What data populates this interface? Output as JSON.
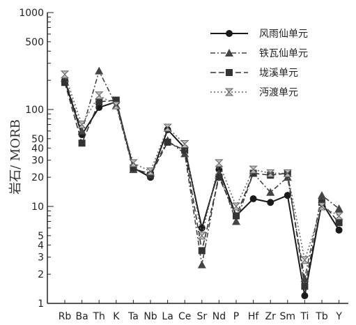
{
  "chart_data": {
    "type": "line",
    "title": "",
    "xlabel": "",
    "ylabel": "岩石/ MORB",
    "yscale": "log",
    "ylim": [
      1,
      1000
    ],
    "yticks": [
      1,
      2,
      3,
      4,
      5,
      10,
      20,
      30,
      40,
      50,
      100,
      500,
      1000
    ],
    "grid": false,
    "legend_position": "top-right",
    "categories": [
      "Rb",
      "Ba",
      "Th",
      "K",
      "Ta",
      "Nb",
      "La",
      "Ce",
      "Sr",
      "Nd",
      "P",
      "Hf",
      "Zr",
      "Sm",
      "Ti",
      "Tb",
      "Y"
    ],
    "series": [
      {
        "name": "风雨仙单元",
        "marker": "circle",
        "dash": "",
        "color": "#1a1a1a",
        "values": [
          200,
          55,
          105,
          120,
          25,
          20,
          62,
          40,
          6,
          24,
          8,
          12,
          11,
          13,
          1.2,
          11,
          5.7
        ]
      },
      {
        "name": "铁瓦仙单元",
        "marker": "triangle",
        "dash": "7,3,2,3",
        "color": "#444444",
        "values": [
          210,
          60,
          250,
          110,
          24,
          22,
          48,
          35,
          2.5,
          22,
          7,
          22,
          14,
          20,
          1.8,
          13,
          9.5
        ]
      },
      {
        "name": "垅溪单元",
        "marker": "square",
        "dash": "8,4",
        "color": "#333333",
        "values": [
          190,
          45,
          120,
          125,
          25,
          21,
          46,
          38,
          3.5,
          20,
          8,
          22,
          21,
          22,
          1.5,
          11,
          6.8
        ]
      },
      {
        "name": "沔渡单元",
        "marker": "bowtie",
        "dash": "2,3",
        "color": "#666666",
        "values": [
          230,
          70,
          140,
          110,
          28,
          23,
          65,
          44,
          5,
          28,
          10,
          24,
          22,
          22,
          2.8,
          10,
          8
        ]
      }
    ]
  }
}
